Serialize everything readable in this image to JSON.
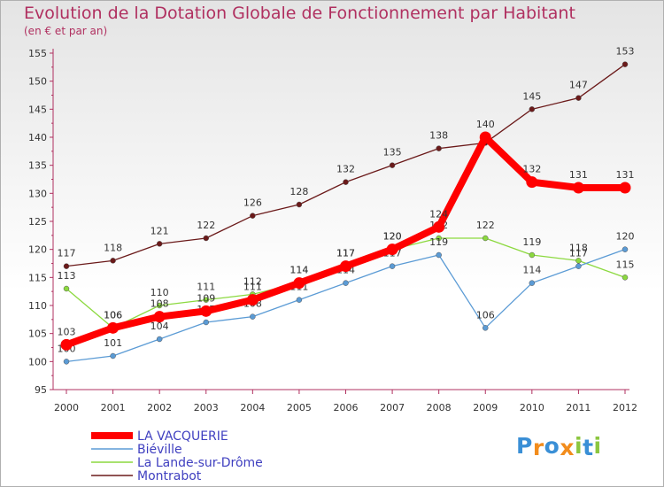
{
  "chart_data": {
    "type": "line",
    "title": "Evolution de la Dotation Globale de Fonctionnement par Habitant",
    "subtitle": "(en € et par an)",
    "xlabel": "",
    "ylabel": "",
    "x": [
      "2000",
      "2001",
      "2002",
      "2003",
      "2004",
      "2005",
      "2006",
      "2007",
      "2008",
      "2009",
      "2010",
      "2011",
      "2012"
    ],
    "ylim": [
      95,
      155
    ],
    "yticks": [
      95,
      100,
      105,
      110,
      115,
      120,
      125,
      130,
      135,
      140,
      145,
      150,
      155
    ],
    "grid": false,
    "legend_position": "bottom-left",
    "series": [
      {
        "name": "Montrabot",
        "color": "#6b1a1a",
        "values": [
          117,
          118,
          121,
          122,
          126,
          128,
          132,
          135,
          138,
          139,
          145,
          147,
          153
        ],
        "labels": [
          "117",
          "118",
          "121",
          "122",
          "126",
          "128",
          "132",
          "135",
          "138",
          "",
          "145",
          "147",
          "153"
        ]
      },
      {
        "name": "La Lande-sur-Drôme",
        "color": "#8cd93f",
        "values": [
          113,
          106,
          110,
          111,
          112,
          114,
          117,
          120,
          122,
          122,
          119,
          118,
          115
        ],
        "labels": [
          "113",
          "106",
          "110",
          "111",
          "112",
          "114",
          "117",
          "120",
          "122",
          "122",
          "119",
          "118",
          "115"
        ]
      },
      {
        "name": "Biéville",
        "color": "#5b9bd5",
        "values": [
          100,
          101,
          104,
          107,
          108,
          111,
          114,
          117,
          119,
          106,
          114,
          117,
          120
        ],
        "labels": [
          "100",
          "101",
          "104",
          "107",
          "108",
          "111",
          "114",
          "117",
          "119",
          "106",
          "114",
          "117",
          "120"
        ]
      },
      {
        "name": "LA VACQUERIE",
        "color": "#ff0000",
        "values": [
          103,
          106,
          108,
          109,
          111,
          114,
          117,
          120,
          124,
          140,
          132,
          131,
          131
        ],
        "labels": [
          "103",
          "106",
          "108",
          "109",
          "111",
          "114",
          "117",
          "120",
          "124",
          "140",
          "132",
          "131",
          "131"
        ]
      }
    ],
    "legend": [
      "LA VACQUERIE",
      "Biéville",
      "La Lande-sur-Drôme",
      "Montrabot"
    ]
  },
  "logo": {
    "letters": [
      "P",
      "r",
      "o",
      "x",
      "i",
      "t",
      "i"
    ],
    "colors": [
      "#3a8fd6",
      "#f28c1c",
      "#3a8fd6",
      "#f28c1c",
      "#8cc63f",
      "#3a8fd6",
      "#8cc63f"
    ]
  }
}
